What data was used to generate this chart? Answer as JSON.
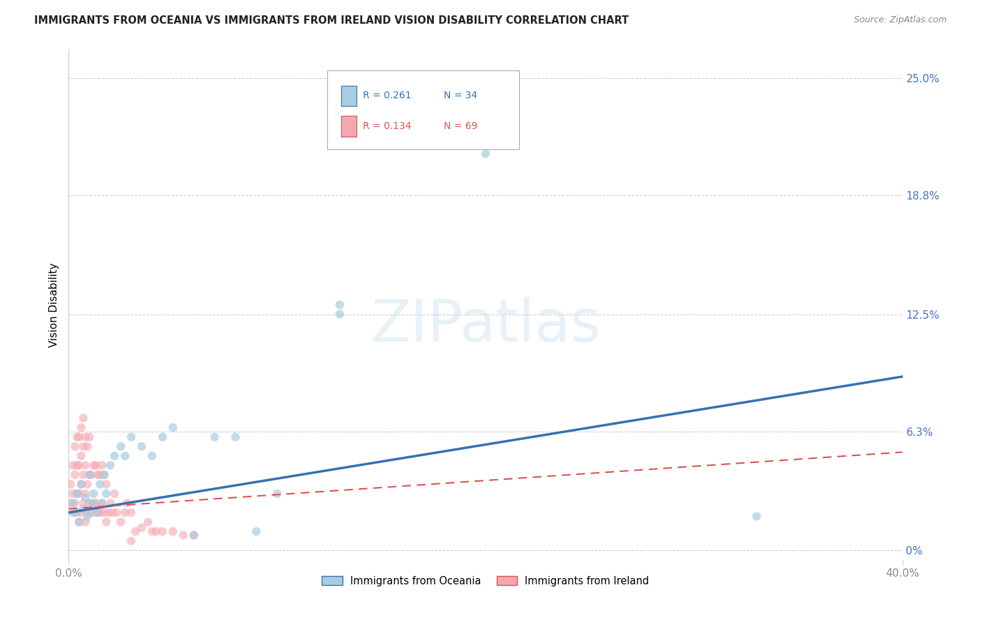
{
  "title": "IMMIGRANTS FROM OCEANIA VS IMMIGRANTS FROM IRELAND VISION DISABILITY CORRELATION CHART",
  "source": "Source: ZipAtlas.com",
  "ylabel": "Vision Disability",
  "xlim": [
    0.0,
    0.4
  ],
  "ylim": [
    -0.005,
    0.265
  ],
  "yticks": [
    0.0,
    0.063,
    0.125,
    0.188,
    0.25
  ],
  "ytick_labels": [
    "0%",
    "6.3%",
    "12.5%",
    "18.8%",
    "25.0%"
  ],
  "xtick_positions": [
    0.0,
    0.4
  ],
  "xtick_labels": [
    "0.0%",
    "40.0%"
  ],
  "legend_r1": "R = 0.261",
  "legend_n1": "N = 34",
  "legend_r2": "R = 0.134",
  "legend_n2": "N = 69",
  "series1_label": "Immigrants from Oceania",
  "series2_label": "Immigrants from Ireland",
  "color1": "#a8cce0",
  "color2": "#f4a7b0",
  "trend1_color": "#3572b0",
  "trend2_color": "#d9534f",
  "background_color": "#ffffff",
  "watermark": "ZIPatlas",
  "oceania_x": [
    0.002,
    0.003,
    0.004,
    0.005,
    0.006,
    0.007,
    0.008,
    0.009,
    0.01,
    0.011,
    0.012,
    0.013,
    0.015,
    0.016,
    0.017,
    0.018,
    0.02,
    0.022,
    0.025,
    0.027,
    0.03,
    0.035,
    0.04,
    0.045,
    0.05,
    0.06,
    0.07,
    0.08,
    0.09,
    0.1,
    0.13,
    0.2,
    0.13,
    0.33
  ],
  "oceania_y": [
    0.025,
    0.02,
    0.03,
    0.015,
    0.035,
    0.022,
    0.028,
    0.018,
    0.04,
    0.025,
    0.03,
    0.02,
    0.035,
    0.025,
    0.04,
    0.03,
    0.045,
    0.05,
    0.055,
    0.05,
    0.06,
    0.055,
    0.05,
    0.06,
    0.065,
    0.008,
    0.06,
    0.06,
    0.01,
    0.03,
    0.125,
    0.21,
    0.13,
    0.018
  ],
  "ireland_x": [
    0.001,
    0.001,
    0.002,
    0.002,
    0.002,
    0.003,
    0.003,
    0.003,
    0.004,
    0.004,
    0.004,
    0.004,
    0.005,
    0.005,
    0.005,
    0.005,
    0.006,
    0.006,
    0.006,
    0.006,
    0.007,
    0.007,
    0.007,
    0.007,
    0.008,
    0.008,
    0.008,
    0.008,
    0.009,
    0.009,
    0.009,
    0.01,
    0.01,
    0.01,
    0.011,
    0.011,
    0.012,
    0.012,
    0.013,
    0.013,
    0.014,
    0.014,
    0.015,
    0.015,
    0.016,
    0.016,
    0.017,
    0.017,
    0.018,
    0.018,
    0.019,
    0.02,
    0.021,
    0.022,
    0.023,
    0.025,
    0.027,
    0.028,
    0.03,
    0.032,
    0.035,
    0.038,
    0.04,
    0.042,
    0.045,
    0.05,
    0.055,
    0.06,
    0.03
  ],
  "ireland_y": [
    0.025,
    0.035,
    0.02,
    0.03,
    0.045,
    0.025,
    0.04,
    0.055,
    0.02,
    0.03,
    0.045,
    0.06,
    0.015,
    0.03,
    0.045,
    0.06,
    0.02,
    0.035,
    0.05,
    0.065,
    0.025,
    0.04,
    0.055,
    0.07,
    0.015,
    0.03,
    0.045,
    0.06,
    0.02,
    0.035,
    0.055,
    0.025,
    0.04,
    0.06,
    0.02,
    0.04,
    0.025,
    0.045,
    0.025,
    0.045,
    0.02,
    0.04,
    0.02,
    0.04,
    0.025,
    0.045,
    0.02,
    0.04,
    0.015,
    0.035,
    0.02,
    0.025,
    0.02,
    0.03,
    0.02,
    0.015,
    0.02,
    0.025,
    0.02,
    0.01,
    0.012,
    0.015,
    0.01,
    0.01,
    0.01,
    0.01,
    0.008,
    0.008,
    0.005
  ],
  "trend1_x0": 0.0,
  "trend1_y0": 0.02,
  "trend1_x1": 0.4,
  "trend1_y1": 0.092,
  "trend2_x0": 0.0,
  "trend2_y0": 0.022,
  "trend2_x1": 0.4,
  "trend2_y1": 0.052
}
